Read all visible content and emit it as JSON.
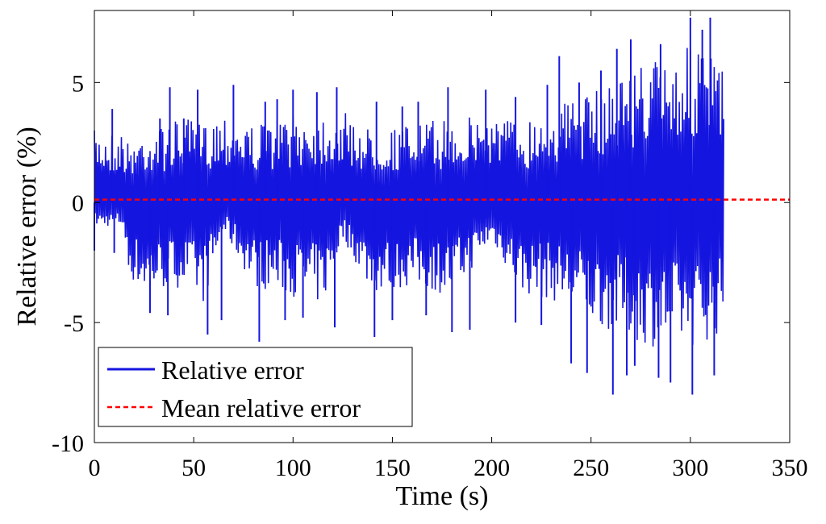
{
  "chart_data": {
    "type": "line",
    "xlabel": "Time (s)",
    "ylabel": "Relative error (%)",
    "xlim": [
      0,
      350
    ],
    "ylim": [
      -10,
      8
    ],
    "x_ticks": [
      0,
      50,
      100,
      150,
      200,
      250,
      300,
      350
    ],
    "y_ticks": [
      -10,
      -5,
      0,
      5
    ],
    "grid": false,
    "legend_position": "bottom-left",
    "series": [
      {
        "name": "Relative error",
        "style": "solid",
        "color": "#1515e0",
        "duration": 317,
        "envelope_x": [
          0,
          15,
          16,
          25,
          45,
          55,
          65,
          80,
          95,
          115,
          125,
          140,
          160,
          180,
          200,
          215,
          235,
          250,
          265,
          280,
          300,
          317
        ],
        "envelope_upper": [
          3.0,
          3.0,
          2.5,
          3.0,
          3.5,
          3.3,
          3.9,
          3.2,
          3.6,
          3.8,
          3.8,
          3.0,
          3.3,
          3.5,
          3.8,
          3.4,
          4.2,
          4.5,
          5.5,
          6.0,
          6.5,
          6.0
        ],
        "envelope_lower": [
          -1.0,
          -1.0,
          -3.0,
          -3.8,
          -3.5,
          -4.2,
          -1.2,
          -3.5,
          -3.8,
          -4.3,
          -1.5,
          -3.8,
          -3.5,
          -3.9,
          -1.6,
          -3.8,
          -4.2,
          -5.0,
          -5.5,
          -6.0,
          -6.0,
          -5.5
        ],
        "spike_peaks": [
          [
            9,
            3.9
          ],
          [
            33,
            3.5
          ],
          [
            38,
            4.8
          ],
          [
            45,
            3.5
          ],
          [
            52,
            4.7
          ],
          [
            70,
            4.9
          ],
          [
            86,
            4.2
          ],
          [
            92,
            4.3
          ],
          [
            100,
            4.7
          ],
          [
            112,
            4.6
          ],
          [
            122,
            4.8
          ],
          [
            142,
            4.2
          ],
          [
            155,
            4.0
          ],
          [
            163,
            4.2
          ],
          [
            178,
            4.8
          ],
          [
            197,
            4.7
          ],
          [
            212,
            4.4
          ],
          [
            228,
            4.9
          ],
          [
            234,
            6.1
          ],
          [
            244,
            5.0
          ],
          [
            255,
            5.5
          ],
          [
            263,
            6.4
          ],
          [
            270,
            6.8
          ],
          [
            285,
            6.6
          ],
          [
            300,
            7.7
          ],
          [
            306,
            7.2
          ],
          [
            310,
            7.7
          ]
        ],
        "spike_troughs": [
          [
            0,
            -2.0
          ],
          [
            10,
            -2.1
          ],
          [
            28,
            -4.6
          ],
          [
            37,
            -4.7
          ],
          [
            57,
            -5.5
          ],
          [
            64,
            -4.9
          ],
          [
            83,
            -5.8
          ],
          [
            96,
            -4.9
          ],
          [
            105,
            -4.8
          ],
          [
            121,
            -5.2
          ],
          [
            141,
            -5.6
          ],
          [
            150,
            -4.9
          ],
          [
            167,
            -4.7
          ],
          [
            180,
            -5.4
          ],
          [
            189,
            -5.3
          ],
          [
            212,
            -5.0
          ],
          [
            225,
            -5.1
          ],
          [
            240,
            -6.7
          ],
          [
            248,
            -7.1
          ],
          [
            261,
            -8.0
          ],
          [
            268,
            -7.2
          ],
          [
            272,
            -6.8
          ],
          [
            284,
            -7.3
          ],
          [
            290,
            -7.5
          ],
          [
            301,
            -8.0
          ],
          [
            312,
            -7.2
          ]
        ]
      },
      {
        "name": "Mean relative error",
        "style": "dashed",
        "color": "#ff0000",
        "x": [
          0,
          350
        ],
        "y": [
          0.12,
          0.12
        ]
      }
    ]
  }
}
